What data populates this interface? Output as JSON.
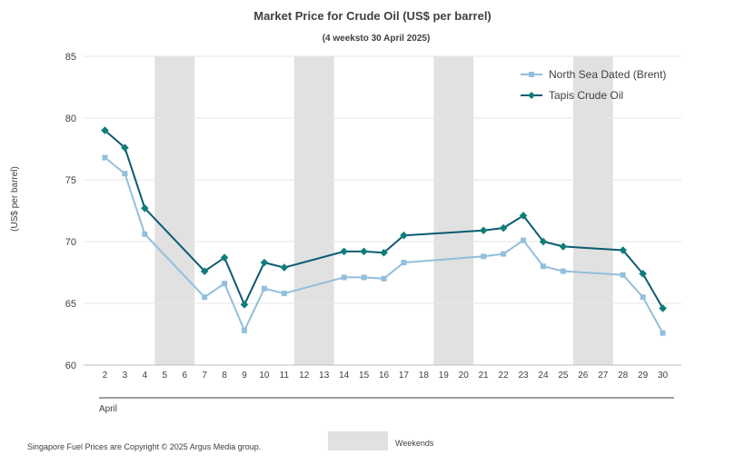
{
  "chart_data": {
    "type": "line",
    "title": "Market Price for Crude  Oil (US$ per barrel)",
    "subtitle": "(4 weeksto 30 April 2025)",
    "ylabel": "(US$ per barrel)",
    "xlabel": "April",
    "ylim": [
      60,
      85
    ],
    "yticks": [
      60,
      65,
      70,
      75,
      80,
      85
    ],
    "grid": true,
    "legend_position": "top-right",
    "categories": [
      "2",
      "3",
      "4",
      "5",
      "6",
      "7",
      "8",
      "9",
      "10",
      "11",
      "12",
      "13",
      "14",
      "15",
      "16",
      "17",
      "18",
      "19",
      "20",
      "21",
      "22",
      "23",
      "24",
      "25",
      "26",
      "27",
      "28",
      "29",
      "30"
    ],
    "series": [
      {
        "name": "North Sea Dated (Brent)",
        "color": "#92bfdc",
        "marker": "square",
        "values": [
          76.8,
          75.5,
          70.6,
          null,
          null,
          65.5,
          66.6,
          62.8,
          66.2,
          65.8,
          null,
          null,
          67.1,
          67.1,
          67.0,
          68.3,
          null,
          null,
          null,
          68.8,
          69.0,
          70.1,
          68.0,
          67.6,
          null,
          null,
          67.3,
          65.5,
          62.6
        ]
      },
      {
        "name": "Tapis Crude Oil",
        "color": "#0b5a73",
        "marker_color": "#0f7e7a",
        "marker": "diamond",
        "values": [
          79.0,
          77.6,
          72.7,
          null,
          null,
          67.6,
          68.7,
          64.9,
          68.3,
          67.9,
          null,
          null,
          69.2,
          69.2,
          69.1,
          70.5,
          null,
          null,
          null,
          70.9,
          71.1,
          72.1,
          70.0,
          69.6,
          null,
          null,
          69.3,
          67.4,
          64.6
        ]
      }
    ],
    "weekend_bands": [
      [
        "5",
        "6"
      ],
      [
        "12",
        "13"
      ],
      [
        "19",
        "20"
      ],
      [
        "26",
        "27"
      ]
    ],
    "weekend_color": "#e1e1e1",
    "weekend_label": "Weekends"
  },
  "footer": {
    "copyright": "Singapore Fuel Prices are Copyright © 2025 Argus Media group."
  }
}
